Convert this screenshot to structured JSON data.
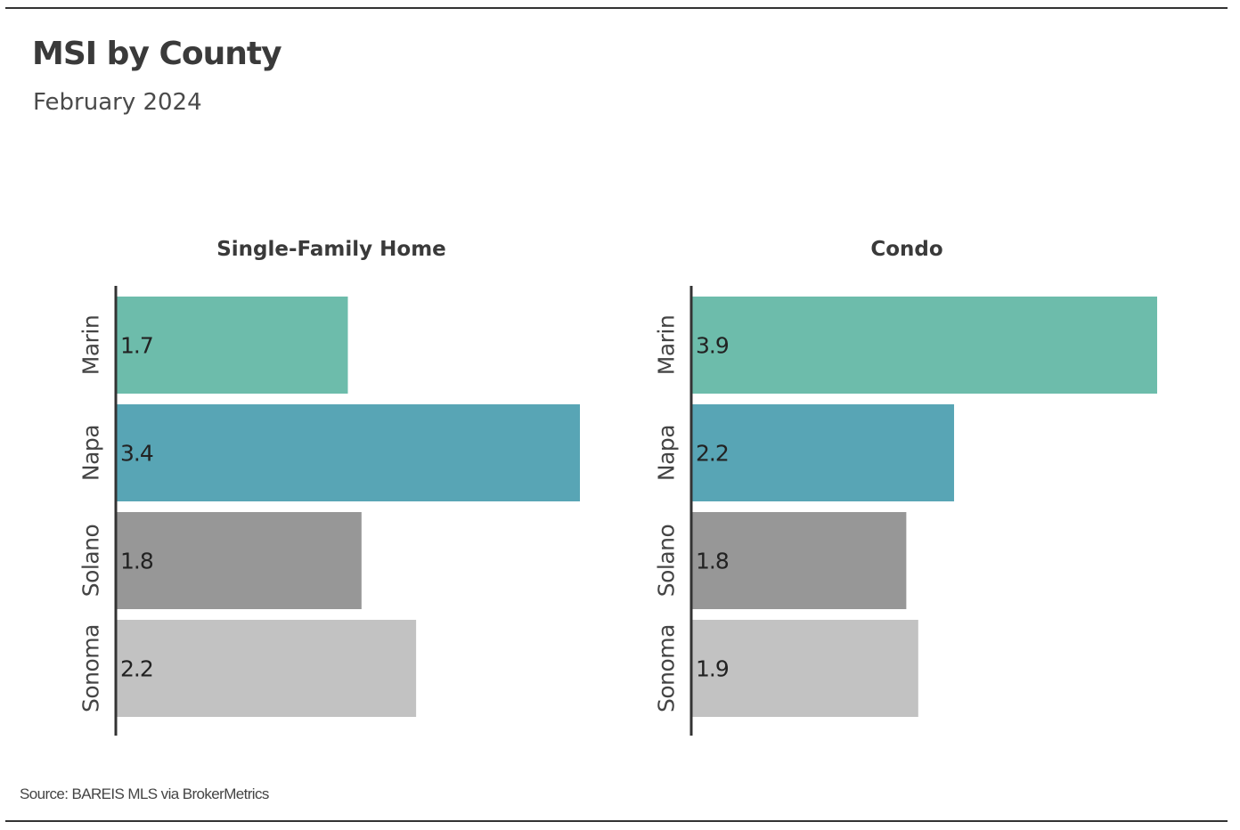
{
  "header": {
    "title": "MSI by County",
    "subtitle": "February 2024"
  },
  "footer": {
    "source": "Source:  BAREIS MLS via BrokerMetrics"
  },
  "chart_data": [
    {
      "type": "bar",
      "orientation": "horizontal",
      "title": "Single-Family Home",
      "categories": [
        "Marin",
        "Napa",
        "Solano",
        "Sonoma"
      ],
      "values": [
        1.7,
        3.4,
        1.8,
        2.2
      ],
      "colors": [
        "#6dbcab",
        "#58a5b5",
        "#979797",
        "#c2c2c2"
      ],
      "xlim": [
        0,
        3.4
      ],
      "grid": false,
      "legend": "none"
    },
    {
      "type": "bar",
      "orientation": "horizontal",
      "title": "Condo",
      "categories": [
        "Marin",
        "Napa",
        "Solano",
        "Sonoma"
      ],
      "values": [
        3.9,
        2.2,
        1.8,
        1.9
      ],
      "colors": [
        "#6dbcab",
        "#58a5b5",
        "#979797",
        "#c2c2c2"
      ],
      "xlim": [
        0,
        3.9
      ],
      "grid": false,
      "legend": "none"
    }
  ]
}
